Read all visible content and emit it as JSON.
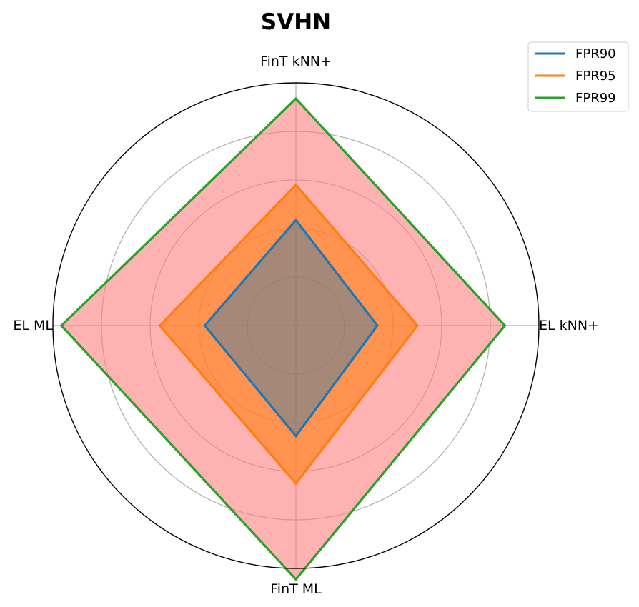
{
  "chart_data": {
    "type": "radar",
    "title": "SVHN",
    "categories": [
      "FinT kNN+",
      "EL kNN+",
      "FinT ML",
      "EL ML"
    ],
    "rmax": 1.0,
    "grid_rings": [
      0.2,
      0.4,
      0.6,
      0.8
    ],
    "grid": true,
    "legend_position": "top-right",
    "series": [
      {
        "name": "FPR99",
        "values": [
          0.935,
          0.86,
          1.045,
          0.965
        ],
        "color": "#2ca02c",
        "fill": "#ff7f7f",
        "fill_opacity": 0.6
      },
      {
        "name": "FPR95",
        "values": [
          0.58,
          0.5,
          0.65,
          0.56
        ],
        "color": "#ff7f0e",
        "fill": "#ff7f0e",
        "fill_opacity": 0.6
      },
      {
        "name": "FPR90",
        "values": [
          0.435,
          0.335,
          0.455,
          0.375
        ],
        "color": "#1f77b4",
        "fill": "#1f77b4",
        "fill_opacity": 0.4
      }
    ],
    "legend": [
      "FPR90",
      "FPR95",
      "FPR99"
    ]
  }
}
